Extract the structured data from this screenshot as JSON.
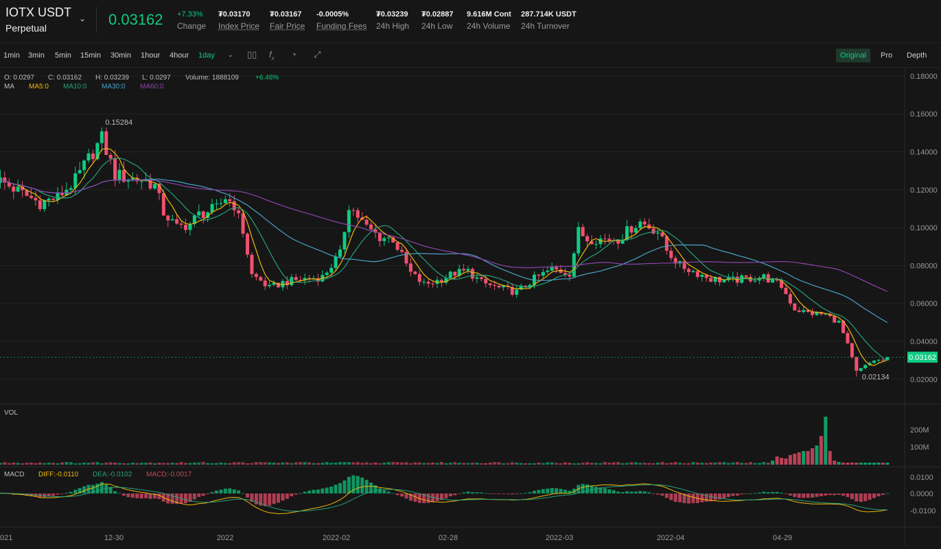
{
  "header": {
    "symbol": "IOTX USDT",
    "contract_type": "Perpetual",
    "last_price": "0.03162",
    "stats": [
      {
        "value": "+7.33%",
        "label": "Change",
        "color": "#0ecb81",
        "underline": false
      },
      {
        "value": "₮0.03170",
        "label": "Index Price",
        "underline": true
      },
      {
        "value": "₮0.03167",
        "label": "Fair Price",
        "underline": true
      },
      {
        "value": "-0.0005%",
        "label": "Funding Fees",
        "underline": true
      },
      {
        "value": "₮0.03239",
        "label": "24h High",
        "underline": false
      },
      {
        "value": "₮0.02887",
        "label": "24h Low",
        "underline": false
      },
      {
        "value": "9.616M Cont",
        "label": "24h Volume",
        "underline": false
      },
      {
        "value": "287.714K USDT",
        "label": "24h Turnover",
        "underline": false
      }
    ]
  },
  "toolbar": {
    "timeframes": [
      "1min",
      "3min",
      "5min",
      "15min",
      "30min",
      "1hour",
      "4hour",
      "1day"
    ],
    "active_timeframe": "1day",
    "icons": [
      "chevron-down-icon",
      "candlestick-icon",
      "function-icon",
      "speedometer-icon",
      "expand-icon"
    ],
    "views": [
      "Original",
      "Pro",
      "Depth"
    ],
    "active_view": "Original"
  },
  "ohlc_legend": {
    "open": "O: 0.0297",
    "close": "C: 0.03162",
    "high": "H: 0.03239",
    "low": "L: 0.0297",
    "volume": "Volume: 1888109",
    "change": "+6.46%"
  },
  "ma_legend": {
    "label": "MA",
    "ma5": "MA5:0",
    "ma10": "MA10:0",
    "ma30": "MA30:0",
    "ma60": "MA60:0"
  },
  "vol_label": "VOL",
  "macd_legend": {
    "label": "MACD",
    "diff": "DIFF:-0.0110",
    "dea": "DEA:-0.0102",
    "macd": "MACD:-0.0017"
  },
  "colors": {
    "up": "#0ecb81",
    "down": "#f0506e",
    "ma5": "#f0b90b",
    "ma10": "#26a17b",
    "ma30": "#4aa3c8",
    "ma60": "#8e44ad"
  },
  "chart_data": {
    "type": "candlestick",
    "price_axis": {
      "ticks": [
        "0.18000",
        "0.16000",
        "0.14000",
        "0.12000",
        "0.10000",
        "0.08000",
        "0.06000",
        "0.04000",
        "0.02000"
      ],
      "range": [
        0.0125,
        0.1825
      ]
    },
    "volume_axis": {
      "ticks": [
        "200M",
        "100M"
      ]
    },
    "macd_axis": {
      "ticks": [
        "0.0100",
        "0.0000",
        "-0.0100"
      ]
    },
    "x_labels": [
      "021",
      "12-30",
      "2022",
      "2022-02",
      "02-28",
      "2022-03",
      "2022-04",
      "04-29"
    ],
    "high_marker": "0.15284",
    "low_marker": "0.02134",
    "current_price_tag": "0.03162",
    "anchors": [
      [
        0,
        0.126
      ],
      [
        6,
        0.118
      ],
      [
        10,
        0.113
      ],
      [
        14,
        0.116
      ],
      [
        18,
        0.125
      ],
      [
        22,
        0.14
      ],
      [
        24,
        0.147
      ],
      [
        27,
        0.128
      ],
      [
        30,
        0.126
      ],
      [
        34,
        0.125
      ],
      [
        36,
        0.122
      ],
      [
        38,
        0.108
      ],
      [
        41,
        0.1
      ],
      [
        44,
        0.102
      ],
      [
        46,
        0.107
      ],
      [
        50,
        0.11
      ],
      [
        52,
        0.116
      ],
      [
        54,
        0.112
      ],
      [
        56,
        0.098
      ],
      [
        58,
        0.075
      ],
      [
        60,
        0.072
      ],
      [
        62,
        0.068
      ],
      [
        65,
        0.071
      ],
      [
        70,
        0.073
      ],
      [
        74,
        0.074
      ],
      [
        78,
        0.086
      ],
      [
        80,
        0.112
      ],
      [
        84,
        0.1
      ],
      [
        87,
        0.095
      ],
      [
        90,
        0.094
      ],
      [
        94,
        0.076
      ],
      [
        97,
        0.07
      ],
      [
        100,
        0.072
      ],
      [
        104,
        0.076
      ],
      [
        107,
        0.077
      ],
      [
        110,
        0.071
      ],
      [
        114,
        0.068
      ],
      [
        118,
        0.066
      ],
      [
        122,
        0.073
      ],
      [
        126,
        0.078
      ],
      [
        130,
        0.076
      ],
      [
        132,
        0.098
      ],
      [
        134,
        0.094
      ],
      [
        138,
        0.094
      ],
      [
        141,
        0.094
      ],
      [
        144,
        0.1
      ],
      [
        146,
        0.103
      ],
      [
        150,
        0.098
      ],
      [
        152,
        0.088
      ],
      [
        155,
        0.08
      ],
      [
        158,
        0.077
      ],
      [
        162,
        0.073
      ],
      [
        166,
        0.072
      ],
      [
        170,
        0.073
      ],
      [
        174,
        0.074
      ],
      [
        178,
        0.069
      ],
      [
        181,
        0.057
      ],
      [
        184,
        0.055
      ],
      [
        188,
        0.054
      ],
      [
        191,
        0.05
      ],
      [
        193,
        0.038
      ],
      [
        195,
        0.024
      ],
      [
        197,
        0.027
      ],
      [
        199,
        0.03
      ],
      [
        201,
        0.03
      ],
      [
        202,
        0.03162
      ]
    ]
  }
}
